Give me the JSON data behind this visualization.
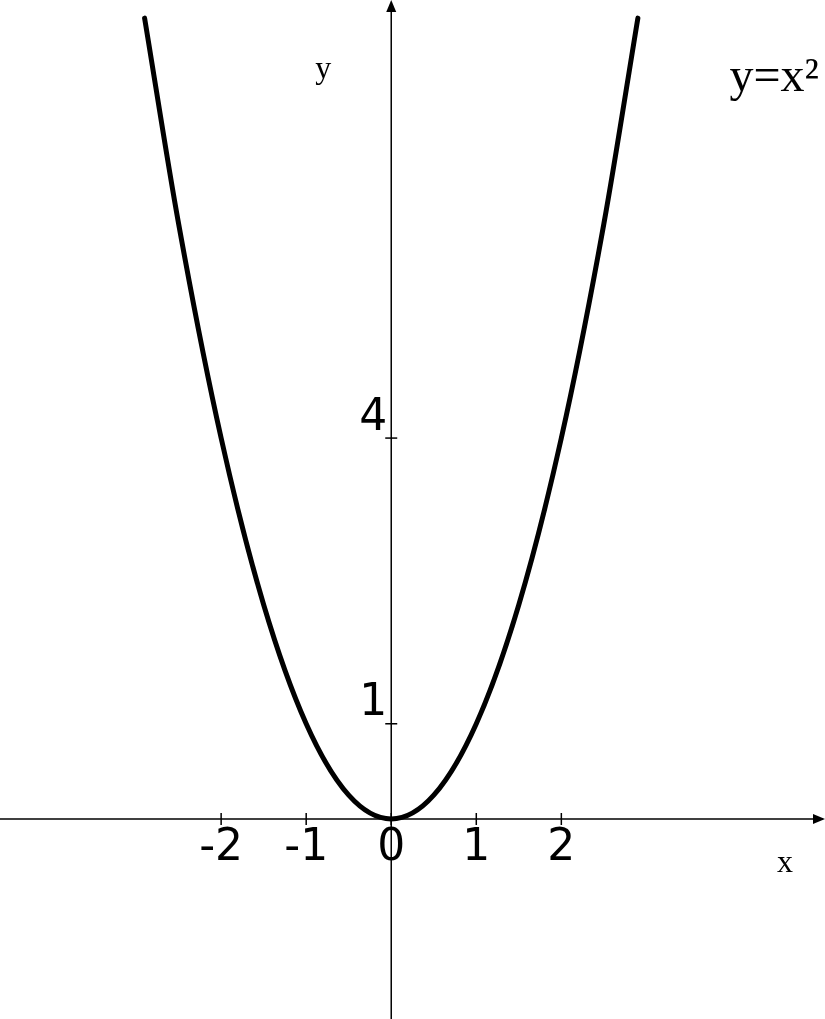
{
  "chart_data": {
    "type": "line",
    "xlabel": "x",
    "ylabel": "y",
    "annotations": [
      "y=x²"
    ],
    "series": [
      {
        "color": "#000000",
        "x": [
          -2.9,
          -2.5,
          -2,
          -1.5,
          -1,
          -0.5,
          0,
          0.5,
          1,
          1.5,
          2,
          2.5,
          2.9
        ],
        "values": [
          8.41,
          6.25,
          4,
          2.25,
          1,
          0.25,
          0,
          0.25,
          1,
          2.25,
          4,
          6.25,
          8.41
        ]
      }
    ],
    "xlim": [
      -4.6,
      5.1
    ],
    "ylim": [
      -2.1,
      8.6
    ],
    "xticks": [
      -2,
      -1,
      0,
      1,
      2
    ],
    "yticks": [
      1,
      4
    ],
    "legend": false,
    "marker": "none",
    "line_style": "solid"
  }
}
